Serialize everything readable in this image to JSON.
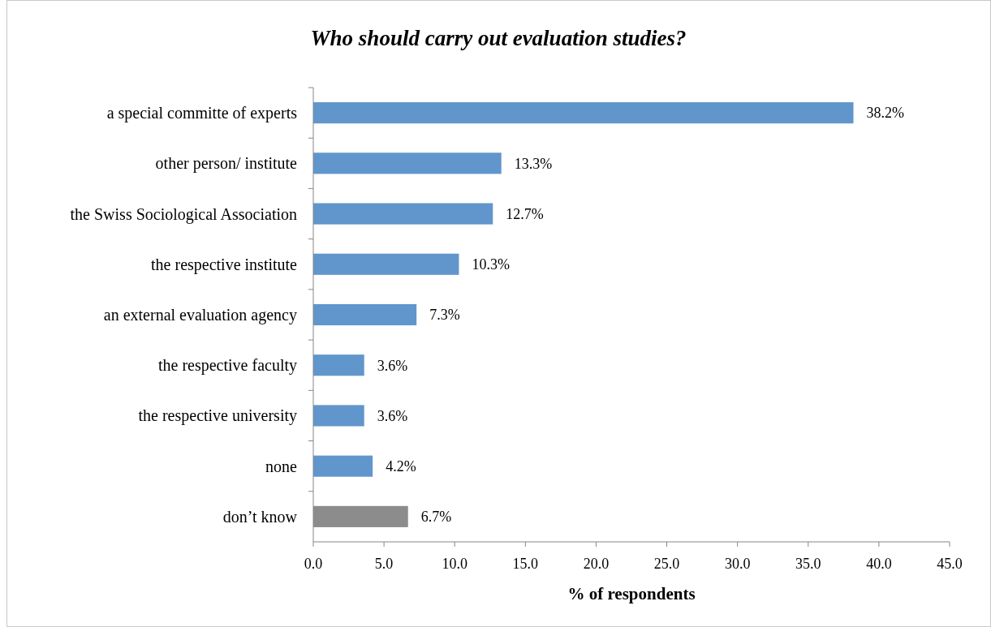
{
  "chart_data": {
    "type": "bar",
    "orientation": "horizontal",
    "title": "Who should carry out evaluation studies?",
    "xlabel": "% of respondents",
    "categories": [
      "a special committe of experts",
      "other person/ institute",
      "the Swiss Sociological Association",
      "the respective institute",
      "an external evaluation agency",
      "the respective faculty",
      "the respective university",
      "none",
      "don’t know"
    ],
    "values": [
      38.2,
      13.3,
      12.7,
      10.3,
      7.3,
      3.6,
      3.6,
      4.2,
      6.7
    ],
    "colors": [
      "#6196cc",
      "#6196cc",
      "#6196cc",
      "#6196cc",
      "#6196cc",
      "#6196cc",
      "#6196cc",
      "#6196cc",
      "#8c8c8c"
    ],
    "value_labels": [
      "38.2%",
      "13.3%",
      "12.7%",
      "10.3%",
      "7.3%",
      "3.6%",
      "3.6%",
      "4.2%",
      "6.7%"
    ],
    "xlim": [
      0,
      45
    ],
    "xticks": [
      {
        "value": 0,
        "label": "0.0"
      },
      {
        "value": 5,
        "label": "5.0"
      },
      {
        "value": 10,
        "label": "10.0"
      },
      {
        "value": 15,
        "label": "15.0"
      },
      {
        "value": 20,
        "label": "20.0"
      },
      {
        "value": 25,
        "label": "25.0"
      },
      {
        "value": 30,
        "label": "30.0"
      },
      {
        "value": 35,
        "label": "35.0"
      },
      {
        "value": 40,
        "label": "40.0"
      },
      {
        "value": 45,
        "label": "45.0"
      }
    ],
    "grid": false
  }
}
